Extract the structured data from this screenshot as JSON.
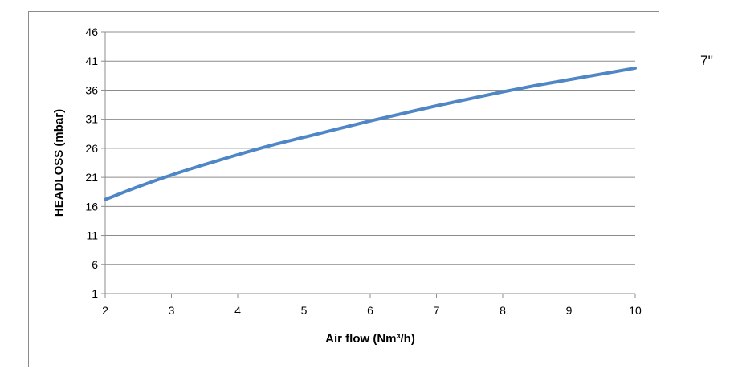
{
  "side_label": "7''",
  "chart_data": {
    "type": "line",
    "title": "",
    "xlabel": "Air flow (Nm³/h)",
    "ylabel": "HEADLOSS (mbar)",
    "xlim": [
      2,
      10
    ],
    "ylim": [
      1,
      46
    ],
    "x_ticks": [
      2,
      3,
      4,
      5,
      6,
      7,
      8,
      9,
      10
    ],
    "y_ticks": [
      1,
      6,
      11,
      16,
      21,
      26,
      31,
      36,
      41,
      46
    ],
    "grid": "horizontal",
    "legend": "none",
    "series": [
      {
        "color": "#4f86c6",
        "x": [
          2,
          2.5,
          3,
          3.5,
          4,
          4.5,
          5,
          5.5,
          6,
          6.5,
          7,
          7.5,
          8,
          8.5,
          9,
          9.5,
          10
        ],
        "y": [
          17.2,
          19.4,
          21.4,
          23.2,
          24.9,
          26.5,
          27.9,
          29.3,
          30.7,
          32.0,
          33.3,
          34.5,
          35.7,
          36.8,
          37.8,
          38.8,
          39.8
        ]
      }
    ]
  }
}
